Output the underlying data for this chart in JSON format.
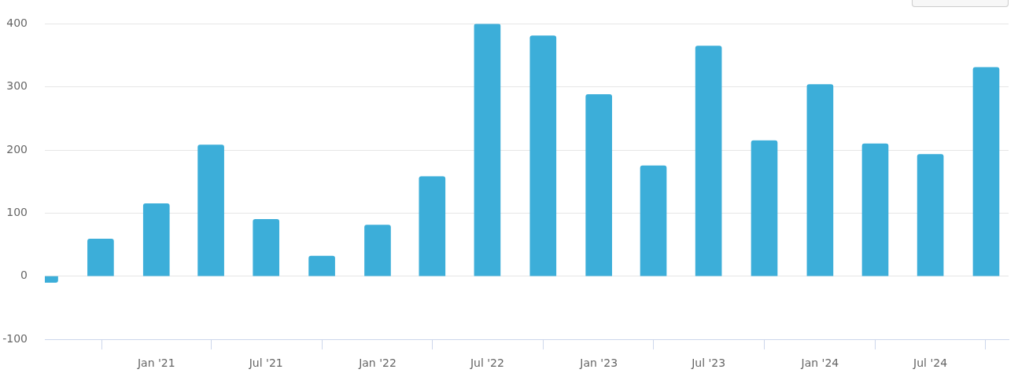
{
  "chart_data": {
    "type": "bar",
    "x": [
      "2020-07",
      "2020-10",
      "2021-01",
      "2021-04",
      "2021-07",
      "2021-10",
      "2022-01",
      "2022-04",
      "2022-07",
      "2022-10",
      "2023-01",
      "2023-04",
      "2023-07",
      "2023-10",
      "2024-01",
      "2024-04",
      "2024-07",
      "2024-10"
    ],
    "values": [
      -10,
      59,
      115,
      208,
      90,
      32,
      81,
      158,
      400,
      381,
      288,
      175,
      365,
      215,
      304,
      210,
      193,
      331
    ],
    "color": "#3caed9",
    "xlim": [
      "2020-07-01",
      "2024-11-07"
    ],
    "xticks": [
      {
        "value": "2021-01",
        "label": "Jan '21"
      },
      {
        "value": "2021-07",
        "label": "Jul '21"
      },
      {
        "value": "2022-01",
        "label": "Jan '22"
      },
      {
        "value": "2022-07",
        "label": "Jul '22"
      },
      {
        "value": "2023-01",
        "label": "Jan '23"
      },
      {
        "value": "2023-07",
        "label": "Jul '23"
      },
      {
        "value": "2024-01",
        "label": "Jan '24"
      },
      {
        "value": "2024-07",
        "label": "Jul '24"
      }
    ],
    "ylim": [
      -100,
      400
    ],
    "yticks": [
      -100,
      0,
      100,
      200,
      300,
      400
    ],
    "grid": "y"
  }
}
